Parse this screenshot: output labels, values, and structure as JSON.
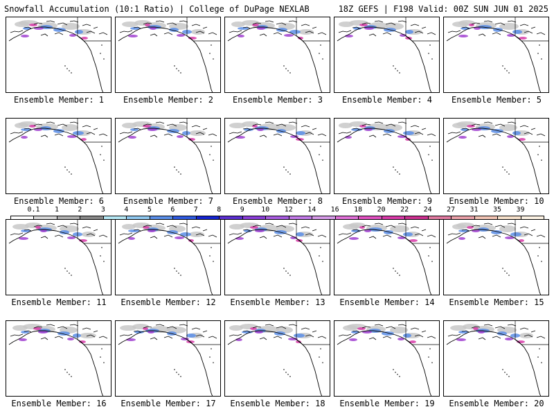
{
  "header": {
    "left_title": "Snowfall Accumulation (10:1 Ratio) | College of DuPage NEXLAB",
    "right_title": "18Z GEFS | F198 Valid: 00Z SUN JUN 01 2025"
  },
  "panels": [
    {
      "label": "Ensemble Member: 1"
    },
    {
      "label": "Ensemble Member: 2"
    },
    {
      "label": "Ensemble Member: 3"
    },
    {
      "label": "Ensemble Member: 4"
    },
    {
      "label": "Ensemble Member: 5"
    },
    {
      "label": "Ensemble Member: 6"
    },
    {
      "label": "Ensemble Member: 7"
    },
    {
      "label": "Ensemble Member: 8"
    },
    {
      "label": "Ensemble Member: 9"
    },
    {
      "label": "Ensemble Member: 10"
    },
    {
      "label": "Ensemble Member: 11"
    },
    {
      "label": "Ensemble Member: 12"
    },
    {
      "label": "Ensemble Member: 13"
    },
    {
      "label": "Ensemble Member: 14"
    },
    {
      "label": "Ensemble Member: 15"
    },
    {
      "label": "Ensemble Member: 16"
    },
    {
      "label": "Ensemble Member: 17"
    },
    {
      "label": "Ensemble Member: 18"
    },
    {
      "label": "Ensemble Member: 19"
    },
    {
      "label": "Ensemble Member: 20"
    }
  ],
  "colorbar": {
    "labels": [
      "0.1",
      "1",
      "2",
      "3",
      "4",
      "5",
      "6",
      "7",
      "8",
      "9",
      "10",
      "12",
      "14",
      "16",
      "18",
      "20",
      "22",
      "24",
      "27",
      "31",
      "35",
      "39"
    ],
    "colors": [
      "#ffffff",
      "#d9d9d9",
      "#b0b0b0",
      "#888888",
      "#b5e8f5",
      "#8fc8f0",
      "#5a8ee8",
      "#2f5ae0",
      "#1424d0",
      "#5b2fd0",
      "#8a3ed8",
      "#a85ce0",
      "#c27ae8",
      "#d69ae8",
      "#e070d8",
      "#e050c0",
      "#d83aa8",
      "#cc3090",
      "#e07aa0",
      "#eaa0a8",
      "#f2c4b4",
      "#f8e2cc",
      "#fdf3e4"
    ]
  },
  "colors": {
    "coastline": "#000000",
    "snow_light": "#c8c8c8",
    "snow_blue": "#5a8ee8",
    "snow_purple": "#a040d0",
    "snow_magenta": "#d83aa8"
  }
}
